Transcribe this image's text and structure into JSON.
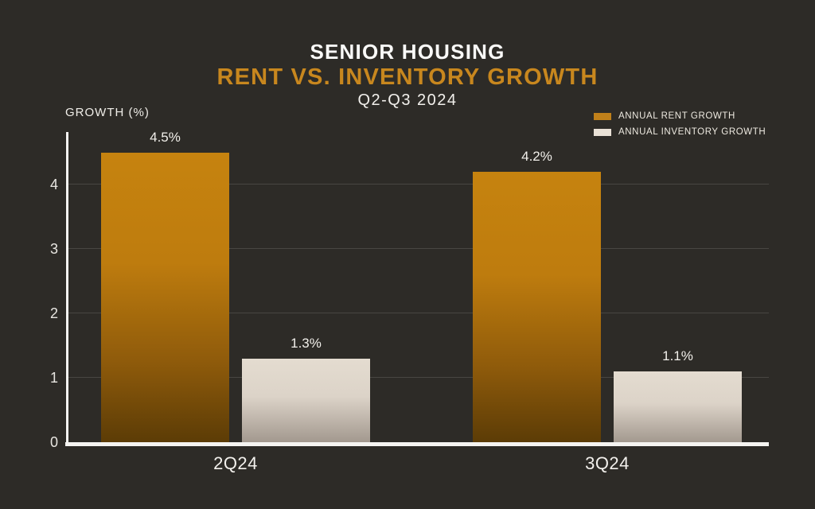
{
  "header": {
    "title": "SENIOR HOUSING",
    "subtitle": "RENT VS. INVENTORY GROWTH",
    "period": "Q2-Q3 2024"
  },
  "legend": {
    "items": [
      {
        "label": "ANNUAL RENT GROWTH",
        "color": "#C0801A"
      },
      {
        "label": "ANNUAL INVENTORY GROWTH",
        "color": "#E9E1D6"
      }
    ]
  },
  "chart_data": {
    "type": "bar",
    "title": "SENIOR HOUSING RENT VS. INVENTORY GROWTH",
    "subtitle": "Q2-Q3 2024",
    "ylabel": "GROWTH (%)",
    "categories": [
      "2Q24",
      "3Q24"
    ],
    "series": [
      {
        "name": "ANNUAL RENT GROWTH",
        "values": [
          4.5,
          4.2
        ],
        "labels": [
          "4.5%",
          "4.2%"
        ]
      },
      {
        "name": "ANNUAL INVENTORY GROWTH",
        "values": [
          1.3,
          1.1
        ],
        "labels": [
          "1.3%",
          "1.1%"
        ]
      }
    ],
    "ylim": [
      0,
      4.8
    ],
    "yticks": [
      0,
      1,
      2,
      3,
      4
    ],
    "grid": true,
    "legend_position": "top-right"
  },
  "colors": {
    "background": "#2D2B27",
    "title_white": "#FAFAF8",
    "title_orange": "#C8871E",
    "bar_rent_top": "#C6830F",
    "bar_rent_mid": "#BE7C0E",
    "bar_rent_low": "#8F5B0B",
    "bar_rent_bottom": "#5C3C06",
    "bar_inventory_top": "#E4DCD0",
    "bar_inventory_mid": "#DCD3C8",
    "bar_inventory_bottom": "#A3998F",
    "axis": "#F5F4F1",
    "gridline": "rgba(255,255,255,0.13)"
  }
}
